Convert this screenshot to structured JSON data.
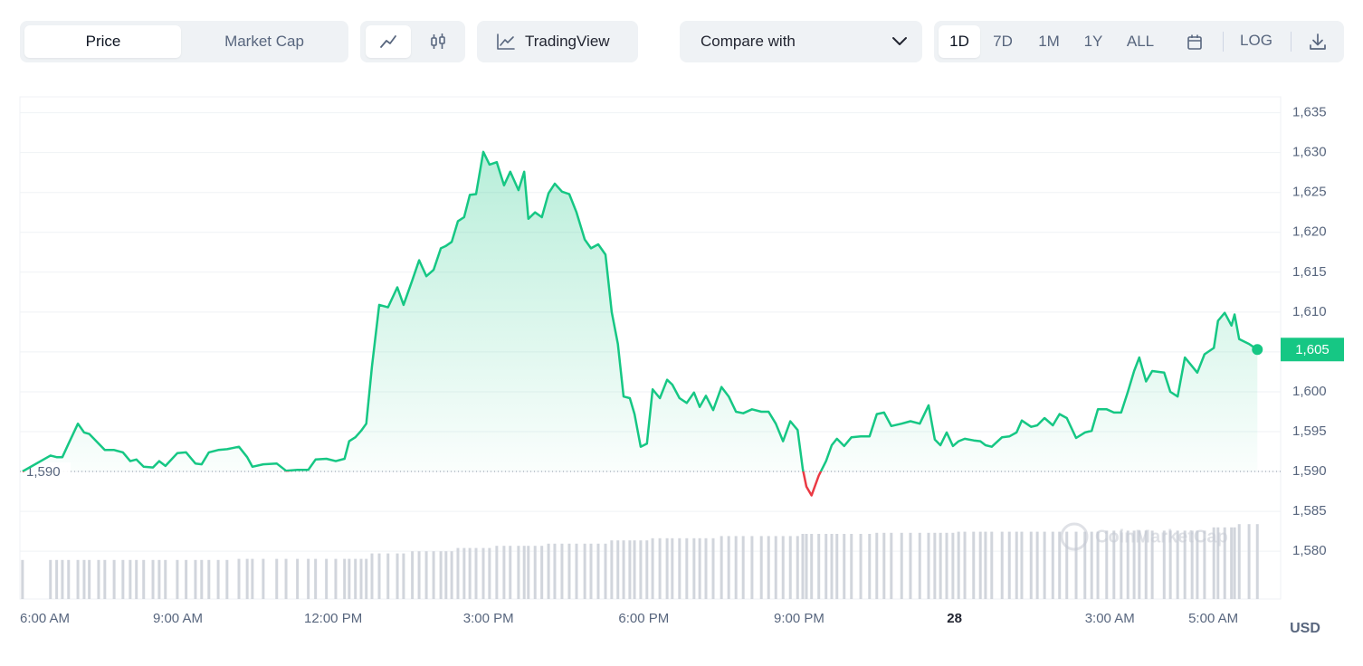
{
  "toolbar": {
    "metric_tabs": [
      "Price",
      "Market Cap"
    ],
    "tradingview": "TradingView",
    "compare": "Compare with",
    "ranges": [
      "1D",
      "7D",
      "1M",
      "1Y",
      "ALL"
    ],
    "log": "LOG"
  },
  "chart_data": {
    "type": "line",
    "color": "#16c784",
    "below_color": "#ea3943",
    "currency": "USD",
    "watermark": "CoinMarketCap",
    "xlim": [
      -0.05,
      24.3
    ],
    "ylim": [
      1574,
      1637
    ],
    "xticks": [
      {
        "value": 0,
        "label": "6:00 AM"
      },
      {
        "value": 3,
        "label": "9:00 AM"
      },
      {
        "value": 6,
        "label": "12:00 PM"
      },
      {
        "value": 9,
        "label": "3:00 PM"
      },
      {
        "value": 12,
        "label": "6:00 PM"
      },
      {
        "value": 15,
        "label": "9:00 PM"
      },
      {
        "value": 18,
        "label": "28"
      },
      {
        "value": 21,
        "label": "3:00 AM"
      },
      {
        "value": 23,
        "label": "5:00 AM"
      }
    ],
    "yticks": [
      {
        "value": 1580,
        "label": "1,580"
      },
      {
        "value": 1585,
        "label": "1,585"
      },
      {
        "value": 1590,
        "label": "1,590"
      },
      {
        "value": 1595,
        "label": "1,595"
      },
      {
        "value": 1600,
        "label": "1,600"
      },
      {
        "value": 1605,
        "label": "1,605"
      },
      {
        "value": 1610,
        "label": "1,610"
      },
      {
        "value": 1615,
        "label": "1,615"
      },
      {
        "value": 1620,
        "label": "1,620"
      },
      {
        "value": 1625,
        "label": "1,625"
      },
      {
        "value": 1630,
        "label": "1,630"
      },
      {
        "value": 1635,
        "label": "1,635"
      }
    ],
    "grid": true,
    "baseline": {
      "value": 1590,
      "label": "1,590"
    },
    "current_label": "1,605",
    "x": [
      0,
      0.54,
      0.66,
      0.77,
      0.89,
      1.07,
      1.19,
      1.29,
      1.47,
      1.59,
      1.77,
      1.94,
      2.08,
      2.2,
      2.34,
      2.52,
      2.64,
      2.76,
      2.99,
      3.16,
      3.34,
      3.46,
      3.6,
      3.78,
      3.95,
      4.18,
      4.34,
      4.44,
      4.65,
      4.91,
      5.09,
      5.31,
      5.52,
      5.66,
      5.87,
      6.05,
      6.22,
      6.31,
      6.43,
      6.54,
      6.64,
      6.75,
      6.89,
      7.06,
      7.24,
      7.36,
      7.53,
      7.66,
      7.8,
      7.94,
      8.08,
      8.18,
      8.29,
      8.41,
      8.53,
      8.64,
      8.76,
      8.9,
      9.02,
      9.16,
      9.3,
      9.42,
      9.58,
      9.69,
      9.77,
      9.9,
      10.03,
      10.16,
      10.28,
      10.42,
      10.56,
      10.7,
      10.86,
      10.98,
      11.12,
      11.26,
      11.38,
      11.5,
      11.61,
      11.73,
      11.82,
      11.94,
      12.06,
      12.17,
      12.31,
      12.45,
      12.55,
      12.69,
      12.83,
      12.97,
      13.08,
      13.2,
      13.34,
      13.5,
      13.64,
      13.78,
      13.92,
      14.09,
      14.27,
      14.41,
      14.55,
      14.69,
      14.83,
      14.97,
      15.07,
      15.14,
      15.24,
      15.38,
      15.52,
      15.63,
      15.73,
      15.87,
      16.01,
      16.19,
      16.36,
      16.5,
      16.64,
      16.78,
      16.98,
      17.15,
      17.33,
      17.5,
      17.62,
      17.73,
      17.85,
      17.97,
      18.08,
      18.2,
      18.37,
      18.5,
      18.6,
      18.72,
      18.92,
      19.06,
      19.2,
      19.3,
      19.48,
      19.6,
      19.74,
      19.9,
      20.03,
      20.17,
      20.35,
      20.52,
      20.65,
      20.77,
      20.94,
      21.08,
      21.22,
      21.35,
      21.47,
      21.57,
      21.7,
      21.82,
      22.05,
      22.17,
      22.31,
      22.45,
      22.59,
      22.69,
      22.83,
      23.01,
      23.09,
      23.22,
      23.35,
      23.41,
      23.5,
      23.69,
      23.85
    ],
    "values": [
      1590,
      1592,
      1591.8,
      1591.8,
      1593.5,
      1596,
      1594.9,
      1594.7,
      1593.5,
      1592.7,
      1592.7,
      1592.4,
      1591.3,
      1591.5,
      1590.6,
      1590.5,
      1591.3,
      1590.7,
      1592.3,
      1592.4,
      1591,
      1590.9,
      1592.4,
      1592.7,
      1592.8,
      1593.1,
      1591.8,
      1590.6,
      1590.9,
      1591,
      1590.1,
      1590.2,
      1590.2,
      1591.5,
      1591.6,
      1591.3,
      1591.6,
      1593.8,
      1594.3,
      1595.1,
      1596,
      1603.2,
      1610.9,
      1610.6,
      1613.1,
      1610.9,
      1614,
      1616.5,
      1614.5,
      1615.3,
      1618,
      1618.3,
      1618.8,
      1621.4,
      1621.9,
      1624.7,
      1624.8,
      1630.1,
      1628.5,
      1628.8,
      1625.9,
      1627.6,
      1625.3,
      1627.6,
      1621.7,
      1622.5,
      1621.9,
      1624.9,
      1626.1,
      1625.1,
      1624.8,
      1622.5,
      1619.1,
      1618,
      1618.5,
      1617.2,
      1610,
      1606,
      1599.4,
      1599.2,
      1597.2,
      1593.1,
      1593.5,
      1600.3,
      1599.2,
      1601.5,
      1600.9,
      1599.2,
      1598.6,
      1599.9,
      1598.1,
      1599.5,
      1597.7,
      1600.6,
      1599.4,
      1597.5,
      1597.3,
      1597.8,
      1597.5,
      1597.5,
      1596,
      1593.8,
      1596.3,
      1595.2,
      1590.3,
      1588.1,
      1587,
      1589.5,
      1591.3,
      1593.3,
      1594.1,
      1593.2,
      1594.3,
      1594.4,
      1594.4,
      1597.2,
      1597.4,
      1595.7,
      1596,
      1596.3,
      1596,
      1598.3,
      1594,
      1593.3,
      1594.9,
      1593.2,
      1593.8,
      1594.1,
      1593.9,
      1593.8,
      1593.3,
      1593.1,
      1594.3,
      1594.4,
      1594.9,
      1596.4,
      1595.6,
      1595.8,
      1596.7,
      1595.8,
      1597.2,
      1596.7,
      1594.2,
      1594.9,
      1595.1,
      1597.8,
      1597.8,
      1597.4,
      1597.4,
      1600,
      1602.6,
      1604.3,
      1601.3,
      1602.6,
      1602.4,
      1600,
      1599.4,
      1604.3,
      1603.2,
      1602.4,
      1604.7,
      1605.5,
      1608.9,
      1609.9,
      1608.3,
      1609.7,
      1606.6,
      1606,
      1605.3
    ],
    "volume": {
      "color": "#d1d5dc",
      "ylim": [
        0,
        100
      ],
      "values": [
        36,
        36,
        36,
        36,
        36,
        36,
        36,
        36,
        36,
        36,
        36,
        36,
        36,
        36,
        36,
        36,
        36,
        36,
        36,
        36,
        36,
        36,
        36,
        36,
        36,
        37,
        37,
        37,
        37,
        37,
        37,
        37,
        37,
        37,
        37,
        37,
        37,
        37,
        37,
        37,
        37,
        42,
        42,
        42,
        42,
        42,
        44,
        44,
        44,
        44,
        44,
        44,
        44,
        47,
        47,
        47,
        47,
        47,
        47,
        49,
        49,
        49,
        49,
        49,
        49,
        49,
        49,
        51,
        51,
        51,
        51,
        51,
        51,
        51,
        51,
        51,
        54,
        54,
        54,
        54,
        54,
        54,
        54,
        56,
        56,
        56,
        56,
        56,
        56,
        56,
        56,
        56,
        56,
        58,
        58,
        58,
        58,
        58,
        58,
        58,
        58,
        58,
        58,
        58,
        60,
        60,
        60,
        60,
        60,
        60,
        60,
        60,
        60,
        60,
        60,
        61,
        61,
        61,
        61,
        61,
        61,
        61,
        61,
        61,
        61,
        61,
        62,
        62,
        62,
        62,
        62,
        62,
        62,
        62,
        62,
        62,
        62,
        62,
        62,
        62,
        62,
        62,
        62,
        62,
        62,
        62,
        63,
        63,
        63,
        63,
        63,
        63,
        63,
        63,
        63,
        63,
        63,
        63,
        63,
        63,
        63,
        66,
        66,
        66,
        66,
        66,
        69,
        69,
        69
      ]
    }
  }
}
